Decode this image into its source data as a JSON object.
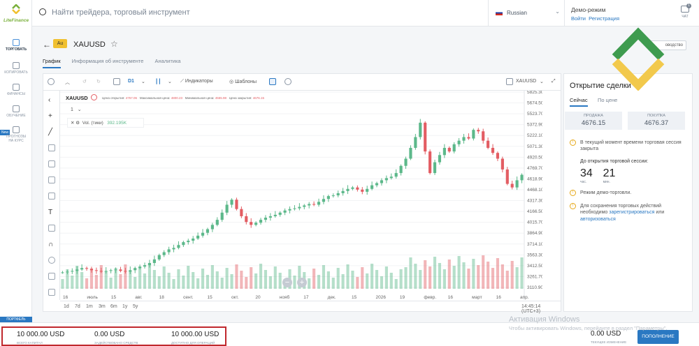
{
  "brand": "LiteFinance",
  "sidebar": {
    "items": [
      {
        "label": "ТОРГОВАТЬ",
        "icon": "chart-icon"
      },
      {
        "label": "КОПИРОВАТЬ",
        "icon": "copy-icon"
      },
      {
        "label": "ФИНАНСЫ",
        "icon": "wallet-icon"
      },
      {
        "label": "ОБУЧЕНИЕ",
        "icon": "graduation-icon"
      },
      {
        "label": "ПРОГНОЗЫ НА КУРС",
        "icon": "forecast-icon"
      }
    ],
    "new_badge": "New",
    "portfolio": "ПОРТФЕЛЬ"
  },
  "header": {
    "search_placeholder": "Найти трейдера, торговый инструмент",
    "language": "Russian",
    "demo_mode": "Демо-режим",
    "login": "Войти",
    "register": "Регистрация",
    "chat": "ЧАТ",
    "chat_badge": "1"
  },
  "instrument": {
    "tag": "Au",
    "symbol": "XAUUSD",
    "leader_btn": "оводство"
  },
  "tabs": [
    "График",
    "Информация об инструменте",
    "Аналитика"
  ],
  "toolbar": {
    "timeframe": "D1",
    "indicators": "Индикаторы",
    "templates": "Шаблоны",
    "symbol": "XAUUSD"
  },
  "legend": {
    "symbol": "XAUUSD",
    "open_label": "Цена открытия:",
    "open": "4757.06",
    "high_label": "Максимальная цена:",
    "high": "4800.23",
    "low_label": "Минимальная цена:",
    "low": "4555.98",
    "close_label": "Цена закрытия:",
    "close": "4676.15",
    "multiplier": "1",
    "vol_label": "Vol. (тики)",
    "vol_value": "392.195K"
  },
  "chart_data": {
    "type": "candlestick",
    "symbol": "XAUUSD",
    "timeframe": "D1",
    "y_ticks": [
      "5825.30",
      "5674.50",
      "5523.70",
      "5372.90",
      "5222.10",
      "5071.30",
      "4920.50",
      "4769.70",
      "4618.90",
      "4468.10",
      "4317.30",
      "4166.50",
      "4015.70",
      "3864.90",
      "3714.10",
      "3563.30",
      "3412.50",
      "3261.70",
      "3110.90"
    ],
    "x_labels": [
      "16",
      "июль",
      "15",
      "авг.",
      "18",
      "сент.",
      "15",
      "окт.",
      "20",
      "нояб",
      "17",
      "дек.",
      "15",
      "2026",
      "19",
      "февр.",
      "16",
      "март",
      "16",
      "апр."
    ],
    "close_series": [
      3320,
      3330,
      3340,
      3360,
      3380,
      3370,
      3350,
      3340,
      3330,
      3340,
      3350,
      3360,
      3340,
      3330,
      3350,
      3380,
      3400,
      3420,
      3450,
      3500,
      3560,
      3600,
      3640,
      3660,
      3700,
      3740,
      3760,
      3790,
      3830,
      3870,
      3920,
      3980,
      4050,
      4150,
      4260,
      4330,
      4200,
      4100,
      4020,
      3980,
      4010,
      4050,
      4080,
      4100,
      4120,
      4150,
      4180,
      4200,
      4210,
      4230,
      4250,
      4270,
      4260,
      4300,
      4340,
      4380,
      4390,
      4420,
      4450,
      4480,
      4500,
      4470,
      4440,
      4480,
      4530,
      4560,
      4600,
      4630,
      4650,
      4700,
      4800,
      4900,
      5050,
      5200,
      5400,
      5000,
      4700,
      4850,
      4950,
      5050,
      5000,
      5100,
      5150,
      5200,
      5180,
      5300,
      5280,
      5150,
      5050,
      4980,
      4900,
      4750,
      4550,
      4500,
      4600,
      4676
    ]
  },
  "bottom_ranges": [
    "1d",
    "7d",
    "1m",
    "3m",
    "6m",
    "1y",
    "5y"
  ],
  "bottom_time": "14:45:14 (UTC+3)",
  "trade": {
    "title": "Открытие сделки",
    "tab_now": "Сейчас",
    "tab_price": "По цене",
    "sell_label": "ПРОДАЖА",
    "sell": "4676.15",
    "buy_label": "ПОКУПКА",
    "buy": "4676.37",
    "warn1": "В текущий момент времени торговая сессия закрыта",
    "opens_in": "До открытия торговой сессии:",
    "hours": "34",
    "hours_unit": "час.",
    "mins": "21",
    "mins_unit": "мин.",
    "demo_note": "Режим демо-торговли.",
    "reg_note_pre": "Для сохранения торговых действий необходимо",
    "reg_link": "зарегистрироваться",
    "reg_or": "или",
    "auth_link": "авторизоваться"
  },
  "account": {
    "capital": "10 000.00 USD",
    "capital_label": "ВСЕГО КАПИТАЛ",
    "used": "0.00 USD",
    "used_label": "ЗАДЕЙСТВОВАНО СРЕДСТВ",
    "available": "10 000.00 USD",
    "available_label": "ДОСТУПНО ДЛЯ ОПЕРАЦИЙ",
    "pnl": "0.00 USD",
    "pnl_label": "ТЕКУЩЕЕ ИЗМЕНЕНИЕ",
    "deposit": "ПОПОЛНЕНИЕ"
  },
  "windows": {
    "line1": "Активация Windows",
    "line2": "Чтобы активировать Windows, перейдите в раздел \"Параметры\"."
  },
  "colors": {
    "up": "#5cb88a",
    "down": "#e35d63",
    "accent": "#2a78c2",
    "brand_green": "#7ab03c"
  }
}
